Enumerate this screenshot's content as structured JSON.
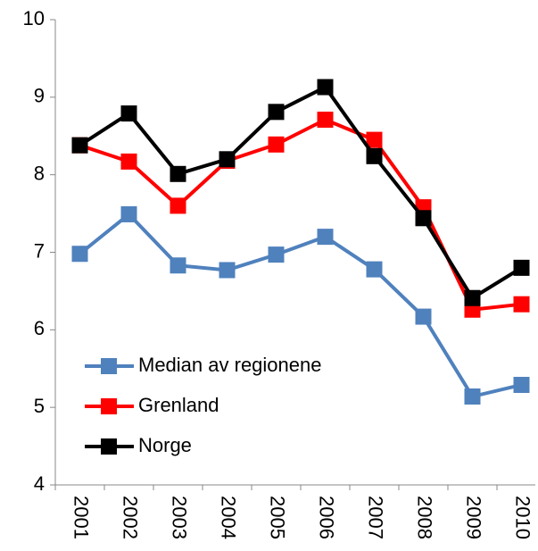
{
  "chart_data": {
    "type": "line",
    "categories": [
      "2001",
      "2002",
      "2003",
      "2004",
      "2005",
      "2006",
      "2007",
      "2008",
      "2009",
      "2010"
    ],
    "series": [
      {
        "name": "Median av regionene",
        "color": "#4f81bd",
        "values": [
          6.98,
          7.49,
          6.83,
          6.77,
          6.97,
          7.2,
          6.78,
          6.17,
          5.14,
          5.29
        ]
      },
      {
        "name": "Grenland",
        "color": "#ff0000",
        "values": [
          8.38,
          8.17,
          7.6,
          8.18,
          8.39,
          8.71,
          8.45,
          7.58,
          6.26,
          6.33
        ]
      },
      {
        "name": "Norge",
        "color": "#000000",
        "values": [
          8.38,
          8.79,
          8.01,
          8.2,
          8.81,
          9.13,
          8.24,
          7.44,
          6.41,
          6.8
        ]
      }
    ],
    "ylim": [
      4,
      10
    ],
    "yticks": [
      4,
      5,
      6,
      7,
      8,
      9,
      10
    ],
    "grid": false,
    "legend": "lower left"
  }
}
